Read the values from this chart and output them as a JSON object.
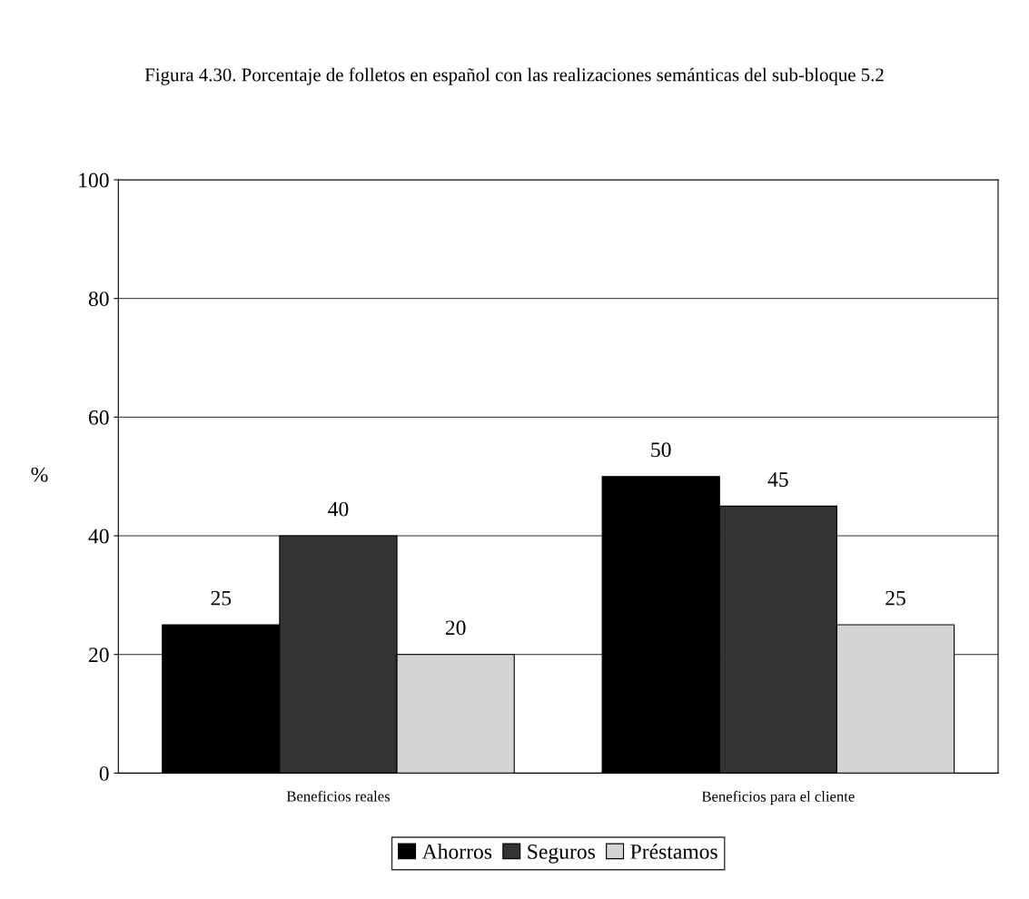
{
  "chart_data": {
    "type": "bar",
    "title": "Figura 4.30. Porcentaje de folletos en español con las realizaciones semánticas del sub-bloque 5.2",
    "ylabel": "%",
    "categories": [
      "Beneficios reales",
      "Beneficios para el cliente"
    ],
    "series": [
      {
        "name": "Ahorros",
        "color": "#000000",
        "values": [
          25,
          50
        ]
      },
      {
        "name": "Seguros",
        "color": "#333333",
        "values": [
          40,
          45
        ]
      },
      {
        "name": "Préstamos",
        "color": "#d4d4d4",
        "values": [
          20,
          25
        ]
      }
    ],
    "ylim": [
      0,
      100
    ],
    "yticks": [
      0,
      20,
      40,
      60,
      80,
      100
    ],
    "grid": "y",
    "legend": "bottom",
    "data_labels": true
  }
}
